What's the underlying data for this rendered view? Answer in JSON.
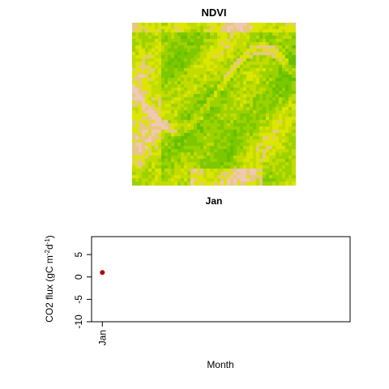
{
  "raster": {
    "title": "NDVI",
    "month_label": "Jan",
    "palette": [
      "#f0c8b4",
      "#e6c882",
      "#dce600",
      "#c2dc00",
      "#9cd200",
      "#7dc800",
      "#66c000"
    ]
  },
  "chart_data": {
    "type": "scatter",
    "xlabel": "Month",
    "ylabel": "CO2 flux (gC m",
    "ylabel_sup1": "-2",
    "ylabel_mid": "d",
    "ylabel_sup2": "-1",
    "ylabel_end": ")",
    "x_ticks": [
      "Jan"
    ],
    "y_ticks": [
      "-10",
      "-5",
      "0",
      "5"
    ],
    "ylim": [
      -10,
      9
    ],
    "xlim": [
      0.5,
      12.5
    ],
    "series": [
      {
        "x": [
          "Jan"
        ],
        "values": [
          1
        ],
        "color": "#b30000"
      }
    ]
  }
}
